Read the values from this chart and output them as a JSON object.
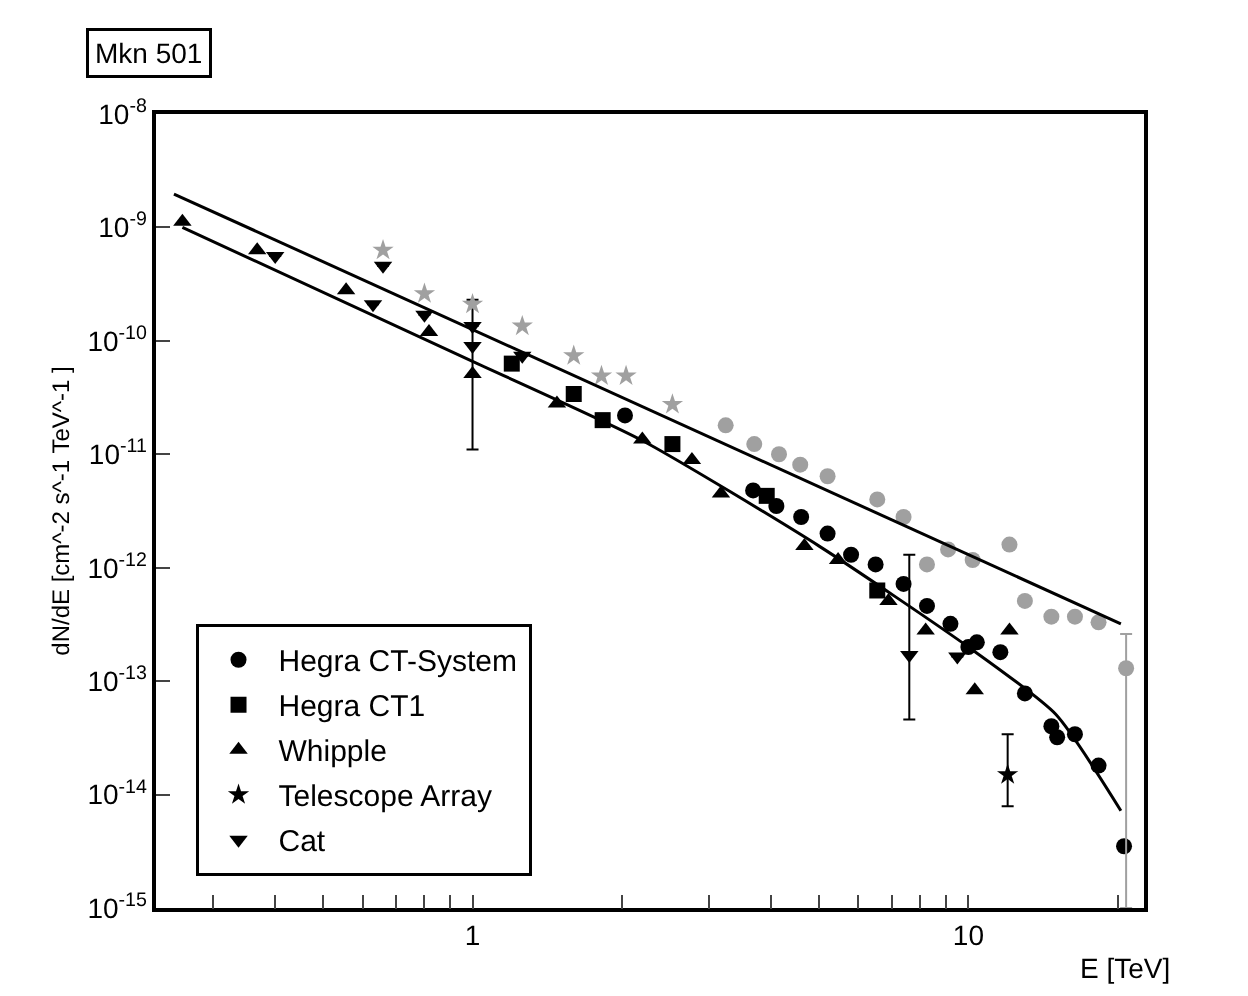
{
  "chart_data": {
    "type": "scatter",
    "title": "Mkn 501",
    "xlabel": "E [TeV]",
    "ylabel": "dN/dE [cm^-2 s^-1 TeV^-1 ]",
    "log": "xy",
    "legend": "bottom left",
    "xlim": [
      0.23,
      22.6
    ],
    "ylim": [
      1e-15,
      1e-08
    ],
    "xticks": [
      {
        "value": 0.3,
        "label": null
      },
      {
        "value": 0.4,
        "label": null
      },
      {
        "value": 0.5,
        "label": null
      },
      {
        "value": 0.6,
        "label": null
      },
      {
        "value": 0.7,
        "label": null
      },
      {
        "value": 0.8,
        "label": null
      },
      {
        "value": 0.9,
        "label": null
      },
      {
        "value": 1,
        "label": "1"
      },
      {
        "value": 2,
        "label": null
      },
      {
        "value": 3,
        "label": null
      },
      {
        "value": 4,
        "label": null
      },
      {
        "value": 5,
        "label": null
      },
      {
        "value": 6,
        "label": null
      },
      {
        "value": 7,
        "label": null
      },
      {
        "value": 8,
        "label": null
      },
      {
        "value": 9,
        "label": null
      },
      {
        "value": 10,
        "label": "10"
      },
      {
        "value": 20,
        "label": null
      }
    ],
    "yticks": [
      {
        "value": 1e-15,
        "label": "10$^{-15}$"
      },
      {
        "value": 1e-14,
        "label": "10$^{-14}$"
      },
      {
        "value": 1e-13,
        "label": "10$^{-13}$"
      },
      {
        "value": 1e-12,
        "label": "10$^{-12}$"
      },
      {
        "value": 1e-11,
        "label": "10$^{-11}$"
      },
      {
        "value": 1e-10,
        "label": "10$^{-10}$"
      },
      {
        "value": 1e-09,
        "label": "10$^{-9}$"
      },
      {
        "value": 1e-08,
        "label": "10$^{-8}$"
      }
    ],
    "series": [
      {
        "name": "Hegra CT-System",
        "color": "#000000",
        "marker": "circle",
        "x": [
          2.03,
          3.68,
          4.1,
          4.6,
          5.2,
          5.8,
          6.5,
          7.4,
          8.25,
          9.2,
          10,
          10.4,
          11.6,
          13,
          14.7,
          15.1,
          16.4,
          18.3,
          20.6
        ],
        "values": [
          2.2e-11,
          4.8e-12,
          3.5e-12,
          2.8e-12,
          2e-12,
          1.3e-12,
          1.07e-12,
          7.2e-13,
          4.6e-13,
          3.2e-13,
          2e-13,
          2.2e-13,
          1.8e-13,
          7.8e-14,
          4e-14,
          3.2e-14,
          3.4e-14,
          1.8e-14,
          3.5e-15
        ]
      },
      {
        "name": "Hegra CT1",
        "color": "#000000",
        "marker": "square",
        "x": [
          1.2,
          1.6,
          1.83,
          2.53,
          3.92,
          6.55
        ],
        "values": [
          6.3e-11,
          3.4e-11,
          2e-11,
          1.23e-11,
          4.3e-12,
          6.3e-13
        ]
      },
      {
        "name": "Whipple",
        "color": "#000000",
        "marker": "triangle",
        "x": [
          0.26,
          0.368,
          0.556,
          0.817,
          1.0,
          1.48,
          2.2,
          2.77,
          3.17,
          4.67,
          5.46,
          6.9,
          8.2,
          10.3,
          12.1
        ],
        "values": [
          1.12e-09,
          6.3e-10,
          2.8e-10,
          1.2e-10,
          5.1e-11,
          2.8e-11,
          1.35e-11,
          8.9e-12,
          4.5e-12,
          1.55e-12,
          1.17e-12,
          5.1e-13,
          2.8e-13,
          8.3e-14,
          2.8e-13
        ]
      },
      {
        "name": "Telescope Array",
        "color": "#000000",
        "marker": "star",
        "x": [
          12
        ],
        "values": [
          1.5e-14
        ],
        "errors": [
          [
            7.9e-15,
            3.4e-14
          ]
        ]
      },
      {
        "name": "Cat",
        "color": "#000000",
        "marker": "triangle-down",
        "x": [
          0.4,
          0.63,
          0.66,
          0.8,
          1.0,
          1.0,
          1.26,
          7.6,
          9.5
        ],
        "values": [
          5.6e-10,
          2.1e-10,
          4.6e-10,
          1.7e-10,
          1.35e-10,
          9e-11,
          7.4e-11,
          1.7e-13,
          1.65e-13
        ],
        "errors": [
          null,
          null,
          null,
          null,
          null,
          [
            1.1e-11,
            2.3e-10
          ],
          null,
          [
            4.6e-14,
            1.3e-12
          ],
          null
        ]
      },
      {
        "color": "#a0a0a0",
        "marker": "star",
        "x": [
          0.66,
          0.8,
          1.0,
          1.26,
          1.6,
          1.82,
          2.04,
          2.53
        ],
        "values": [
          6.3e-10,
          2.6e-10,
          2.1e-10,
          1.35e-10,
          7.4e-11,
          4.9e-11,
          4.9e-11,
          2.75e-11
        ]
      },
      {
        "color": "#a0a0a0",
        "marker": "circle",
        "x": [
          3.24,
          3.7,
          4.15,
          4.58,
          5.2,
          6.55,
          7.4,
          8.25,
          9.1,
          10.2,
          12.1,
          13,
          14.7,
          16.4,
          18.3,
          20.8
        ],
        "values": [
          1.8e-11,
          1.23e-11,
          1e-11,
          8.1e-12,
          6.4e-12,
          4e-12,
          2.8e-12,
          1.07e-12,
          1.45e-12,
          1.17e-12,
          1.6e-12,
          5.1e-13,
          3.7e-13,
          3.7e-13,
          3.3e-13,
          1.3e-13
        ],
        "errors": [
          null,
          null,
          null,
          null,
          null,
          null,
          null,
          null,
          null,
          null,
          null,
          null,
          null,
          null,
          null,
          [
            1e-15,
            2.6e-13
          ]
        ]
      },
      {
        "type": "line",
        "color": "#000000",
        "marker": "none",
        "x": [
          0.25,
          20.3
        ],
        "values": [
          1.97e-09,
          3.2e-13
        ]
      },
      {
        "type": "line",
        "color": "#000000",
        "marker": "none",
        "x": [
          0.26,
          1,
          2.18,
          5,
          10,
          15,
          20.3
        ],
        "values": [
          1e-09,
          6.6e-11,
          1.35e-11,
          1.55e-12,
          2e-13,
          5.1e-14,
          7.2e-15
        ]
      }
    ]
  }
}
